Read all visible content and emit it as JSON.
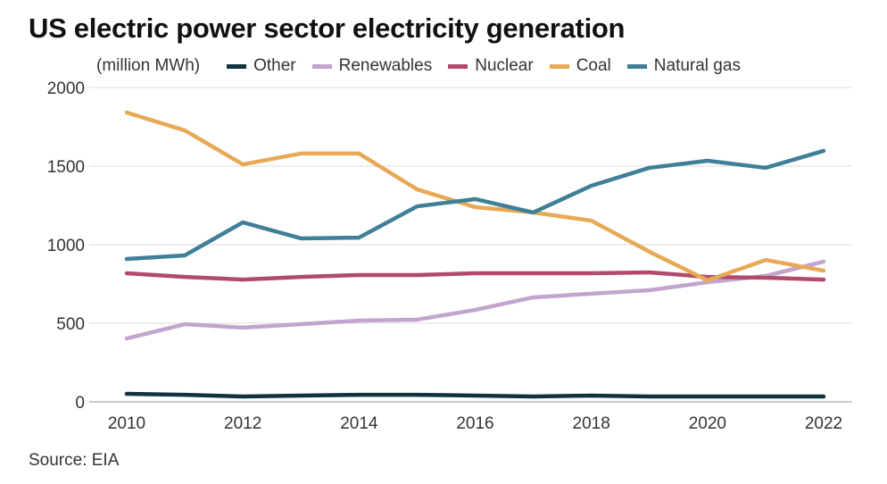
{
  "chart_data": {
    "type": "line",
    "title": "US electric power sector electricity generation",
    "ylabel": "(million MWh)",
    "source": "Source: EIA",
    "x": [
      2010,
      2011,
      2012,
      2013,
      2014,
      2015,
      2016,
      2017,
      2018,
      2019,
      2020,
      2021,
      2022
    ],
    "xticks": [
      2010,
      2012,
      2014,
      2016,
      2018,
      2020,
      2022
    ],
    "yticks": [
      0,
      500,
      1000,
      1500,
      2000
    ],
    "ylim": [
      0,
      2000
    ],
    "grid": true,
    "legend": "top",
    "series": [
      {
        "name": "Other",
        "color": "#12323f",
        "values": [
          51,
          45,
          34,
          40,
          45,
          45,
          40,
          34,
          40,
          34,
          34,
          34,
          34
        ]
      },
      {
        "name": "Renewables",
        "color": "#c2a5cf",
        "values": [
          403,
          494,
          472,
          494,
          517,
          523,
          585,
          665,
          688,
          710,
          761,
          801,
          892
        ]
      },
      {
        "name": "Nuclear",
        "color": "#b34a6c",
        "values": [
          818,
          795,
          778,
          795,
          807,
          807,
          818,
          818,
          818,
          824,
          795,
          790,
          778
        ]
      },
      {
        "name": "Coal",
        "color": "#e8a957",
        "values": [
          1841,
          1727,
          1511,
          1580,
          1580,
          1352,
          1239,
          1205,
          1153,
          955,
          773,
          903,
          835
        ]
      },
      {
        "name": "Natural gas",
        "color": "#3f7f97",
        "values": [
          909,
          932,
          1142,
          1040,
          1045,
          1244,
          1290,
          1205,
          1375,
          1489,
          1534,
          1489,
          1597
        ]
      }
    ]
  }
}
